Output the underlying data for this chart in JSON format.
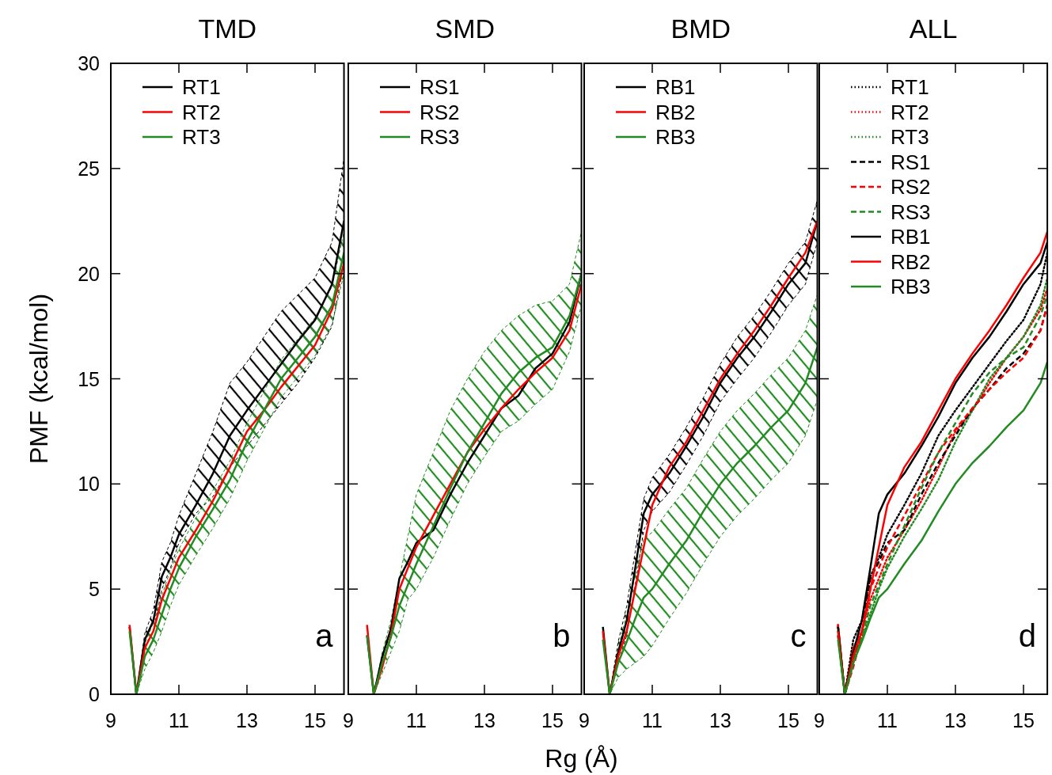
{
  "chart_data": [
    {
      "type": "line",
      "title": "TMD",
      "ylabel": "PMF (kcal/mol)",
      "x": [
        9.55,
        9.75,
        10,
        10.25,
        10.5,
        10.75,
        11,
        11.5,
        12,
        12.5,
        13,
        13.5,
        14,
        14.5,
        15,
        15.5,
        15.85
      ],
      "xlim": [
        9,
        15.85
      ],
      "xticks": [
        9,
        11,
        13,
        15
      ],
      "ylim": [
        0,
        30
      ],
      "yticks": [
        0,
        5,
        10,
        15,
        20,
        25,
        30
      ],
      "legend": "top left",
      "annotations": [
        "a"
      ],
      "line_style": "solid",
      "series": [
        {
          "name": "RT1",
          "color": "#000000",
          "values": [
            3.2,
            0,
            2.6,
            3.5,
            5.6,
            6.5,
            7.6,
            9.0,
            10.5,
            12.3,
            13.5,
            14.6,
            15.7,
            16.8,
            17.8,
            19.5,
            22.5
          ],
          "lower": [
            3.2,
            0,
            2.3,
            3.0,
            5.0,
            6.0,
            7.2,
            8.6,
            9.4,
            10.8,
            11.8,
            12.8,
            13.8,
            14.8,
            16.0,
            17.5,
            20.5
          ],
          "upper": [
            3.2,
            0,
            2.9,
            4.0,
            6.3,
            7.2,
            8.5,
            10.5,
            12.5,
            14.8,
            15.8,
            17.0,
            18.2,
            19.0,
            19.8,
            21.5,
            25.5
          ]
        },
        {
          "name": "RT2",
          "color": "#ff0000",
          "values": [
            3.3,
            0,
            2.2,
            3.0,
            4.5,
            5.5,
            6.5,
            7.8,
            9.2,
            10.8,
            12.5,
            13.5,
            14.6,
            15.6,
            16.6,
            18.3,
            20.5
          ]
        },
        {
          "name": "RT3",
          "color": "#228b22",
          "values": [
            3.0,
            0,
            1.8,
            2.6,
            3.8,
            5.0,
            6.0,
            7.5,
            8.8,
            10.2,
            12.0,
            13.5,
            15.0,
            16.0,
            17.0,
            18.5,
            21.0
          ],
          "lower": [
            3.0,
            0,
            1.2,
            2.0,
            3.0,
            4.2,
            5.2,
            6.6,
            7.9,
            9.3,
            11.1,
            12.6,
            14.1,
            15.1,
            16.1,
            17.6,
            20.0
          ],
          "upper": [
            3.0,
            0,
            2.4,
            3.4,
            4.7,
            5.9,
            6.9,
            8.4,
            9.7,
            11.1,
            12.9,
            14.4,
            15.9,
            16.9,
            17.9,
            19.4,
            22.0
          ]
        }
      ]
    },
    {
      "type": "line",
      "title": "SMD",
      "xlabel": "Rg (Å)",
      "x": [
        9.55,
        9.75,
        10,
        10.25,
        10.5,
        10.75,
        11,
        11.5,
        12,
        12.5,
        13,
        13.5,
        14,
        14.5,
        15,
        15.5,
        15.85
      ],
      "xlim": [
        9,
        15.85
      ],
      "xticks": [
        9,
        11,
        13,
        15
      ],
      "ylim": [
        0,
        30
      ],
      "yticks": [
        0,
        5,
        10,
        15,
        20,
        25,
        30
      ],
      "tick_labels": "x",
      "legend": "top left",
      "annotations": [
        "b"
      ],
      "line_style": "solid",
      "series": [
        {
          "name": "RS1",
          "color": "#000000",
          "values": [
            2.8,
            0,
            1.8,
            3.1,
            5.5,
            6.3,
            7.2,
            7.8,
            9.5,
            11.0,
            12.3,
            13.6,
            14.2,
            15.5,
            16.2,
            17.7,
            20.0
          ]
        },
        {
          "name": "RS2",
          "color": "#ff0000",
          "values": [
            3.3,
            0,
            1.3,
            2.8,
            5.0,
            6.0,
            7.0,
            8.5,
            10.0,
            11.5,
            12.6,
            13.6,
            14.5,
            15.3,
            16.0,
            17.3,
            19.5
          ]
        },
        {
          "name": "RS3",
          "color": "#228b22",
          "values": [
            2.8,
            0,
            1.5,
            2.7,
            4.2,
            5.2,
            6.2,
            8.0,
            9.8,
            11.5,
            12.9,
            14.3,
            15.3,
            16.0,
            16.5,
            18.0,
            20.0
          ],
          "lower": [
            2.8,
            0,
            1.0,
            2.0,
            3.0,
            4.5,
            5.0,
            6.5,
            8.3,
            10.0,
            11.3,
            12.5,
            13.0,
            13.8,
            14.5,
            16.3,
            18.5
          ],
          "upper": [
            2.8,
            0,
            2.0,
            3.5,
            5.5,
            7.5,
            9.5,
            11.5,
            13.5,
            15.0,
            16.3,
            17.3,
            18.0,
            18.5,
            18.7,
            19.5,
            22.0
          ]
        }
      ]
    },
    {
      "type": "line",
      "title": "BMD",
      "x": [
        9.55,
        9.75,
        10,
        10.25,
        10.5,
        10.75,
        11,
        11.5,
        12,
        12.5,
        13,
        13.5,
        14,
        14.5,
        15,
        15.5,
        15.85
      ],
      "xlim": [
        9,
        15.85
      ],
      "xticks": [
        9,
        11,
        13,
        15
      ],
      "ylim": [
        0,
        30
      ],
      "yticks": [
        0,
        5,
        10,
        15,
        20,
        25,
        30
      ],
      "tick_labels": "x",
      "legend": "top left",
      "annotations": [
        "c"
      ],
      "line_style": "solid",
      "series": [
        {
          "name": "RB1",
          "color": "#000000",
          "values": [
            3.2,
            0,
            2.0,
            3.5,
            6.0,
            8.6,
            9.5,
            10.5,
            11.8,
            13.2,
            14.8,
            16.0,
            17.0,
            18.2,
            19.5,
            20.5,
            22.5
          ],
          "lower": [
            3.2,
            0,
            1.5,
            2.8,
            5.2,
            7.8,
            8.7,
            9.6,
            10.9,
            12.3,
            13.9,
            15.0,
            16.0,
            17.2,
            18.5,
            19.5,
            21.5
          ],
          "upper": [
            3.2,
            0,
            2.5,
            4.2,
            6.8,
            9.3,
            10.3,
            11.4,
            12.7,
            14.1,
            15.7,
            17.0,
            18.0,
            19.2,
            20.5,
            21.5,
            23.5
          ]
        },
        {
          "name": "RB2",
          "color": "#ff0000",
          "values": [
            3.0,
            0,
            1.8,
            3.0,
            5.0,
            7.0,
            9.0,
            10.8,
            12.0,
            13.5,
            15.0,
            16.2,
            17.3,
            18.5,
            19.8,
            21.0,
            22.5
          ]
        },
        {
          "name": "RB3",
          "color": "#228b22",
          "values": [
            2.6,
            0,
            1.5,
            2.5,
            3.6,
            4.6,
            5.0,
            6.2,
            7.3,
            8.7,
            10.0,
            11.0,
            11.8,
            12.7,
            13.5,
            14.8,
            16.5
          ],
          "lower": [
            2.6,
            0,
            0.8,
            1.2,
            1.5,
            1.8,
            2.3,
            3.6,
            4.8,
            6.2,
            7.5,
            8.5,
            9.3,
            10.2,
            11.0,
            12.3,
            14.0
          ],
          "upper": [
            2.6,
            0,
            2.2,
            3.8,
            5.7,
            7.4,
            7.7,
            8.8,
            9.8,
            11.2,
            12.5,
            13.5,
            14.3,
            15.2,
            16.0,
            17.3,
            19.0
          ]
        }
      ]
    },
    {
      "type": "line",
      "title": "ALL",
      "x": [
        9.55,
        9.75,
        10,
        10.25,
        10.5,
        10.75,
        11,
        11.5,
        12,
        12.5,
        13,
        13.5,
        14,
        14.5,
        15,
        15.5,
        15.7
      ],
      "xlim": [
        9,
        15.7
      ],
      "xticks": [
        9,
        11,
        13,
        15
      ],
      "ylim": [
        0,
        30
      ],
      "yticks": [
        0,
        5,
        10,
        15,
        20,
        25,
        30
      ],
      "tick_labels": "x",
      "legend": "top left",
      "annotations": [
        "d"
      ],
      "series": [
        {
          "name": "RT1",
          "color": "#000000",
          "line_style": "dotted",
          "values": [
            3.2,
            0,
            2.6,
            3.5,
            5.6,
            6.5,
            7.6,
            9.0,
            10.5,
            12.3,
            13.5,
            14.6,
            15.7,
            16.8,
            17.8,
            19.5,
            21.0
          ]
        },
        {
          "name": "RT2",
          "color": "#ff0000",
          "line_style": "dotted",
          "values": [
            3.3,
            0,
            2.2,
            3.0,
            4.5,
            5.5,
            6.5,
            7.8,
            9.2,
            10.8,
            12.5,
            13.5,
            14.8,
            16.0,
            17.0,
            18.3,
            19.3
          ]
        },
        {
          "name": "RT3",
          "color": "#228b22",
          "line_style": "dotted",
          "values": [
            3.0,
            0,
            1.8,
            2.6,
            3.8,
            5.0,
            6.0,
            7.5,
            8.8,
            10.2,
            12.0,
            13.5,
            15.0,
            16.0,
            17.0,
            18.5,
            19.8
          ]
        },
        {
          "name": "RS1",
          "color": "#000000",
          "line_style": "dashed",
          "values": [
            2.8,
            0,
            1.5,
            2.8,
            5.5,
            6.3,
            7.2,
            7.8,
            9.5,
            11.0,
            12.3,
            13.6,
            14.5,
            15.5,
            16.2,
            17.3,
            18.5
          ]
        },
        {
          "name": "RS2",
          "color": "#ff0000",
          "line_style": "dashed",
          "values": [
            3.3,
            0,
            1.3,
            2.8,
            5.0,
            6.0,
            7.0,
            8.5,
            10.0,
            11.5,
            12.6,
            13.6,
            14.5,
            15.3,
            16.0,
            17.3,
            18.5
          ]
        },
        {
          "name": "RS3",
          "color": "#228b22",
          "line_style": "dashed",
          "values": [
            2.8,
            0,
            1.5,
            2.7,
            4.2,
            5.2,
            6.2,
            8.0,
            9.8,
            11.5,
            12.9,
            14.3,
            15.3,
            16.0,
            16.5,
            18.0,
            19.0
          ]
        },
        {
          "name": "RB1",
          "color": "#000000",
          "line_style": "solid",
          "values": [
            3.2,
            0,
            2.0,
            3.5,
            6.0,
            8.6,
            9.5,
            10.5,
            11.8,
            13.2,
            14.8,
            16.0,
            17.0,
            18.2,
            19.5,
            20.5,
            21.5
          ]
        },
        {
          "name": "RB2",
          "color": "#ff0000",
          "line_style": "solid",
          "values": [
            3.0,
            0,
            1.8,
            3.0,
            5.0,
            7.0,
            9.0,
            10.8,
            12.0,
            13.5,
            15.0,
            16.2,
            17.3,
            18.5,
            19.8,
            21.0,
            22.0
          ]
        },
        {
          "name": "RB3",
          "color": "#228b22",
          "line_style": "solid",
          "values": [
            2.6,
            0,
            1.5,
            2.5,
            3.6,
            4.6,
            5.0,
            6.2,
            7.3,
            8.7,
            10.0,
            11.0,
            11.8,
            12.7,
            13.5,
            14.8,
            15.8
          ]
        }
      ]
    }
  ]
}
